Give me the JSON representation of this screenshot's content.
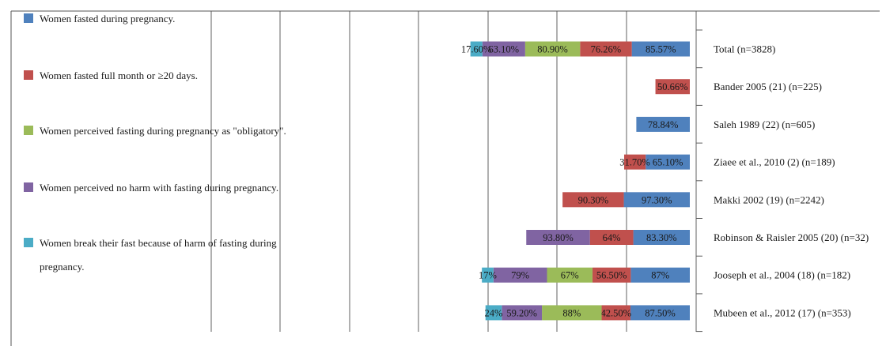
{
  "chart_data": {
    "type": "bar",
    "orientation": "horizontal",
    "stacked": true,
    "grid": true,
    "legend_position": "left",
    "categories": [
      "Total (n=3828)",
      "Bander 2005 (21) (n=225)",
      "Saleh 1989 (22) (n=605)",
      "Ziaee et al., 2010 (2) (n=189)",
      "Makki 2002 (19) (n=2242)",
      "Robinson & Raisler 2005 (20) (n=32)",
      "Jooseph et al., 2004 (18) (n=182)",
      "Mubeen et al., 2012 (17) (n=353)"
    ],
    "series": [
      {
        "name": "Women fasted during pregnancy.",
        "name_lines": [
          "Women fasted during pregnancy."
        ],
        "color": "#4f81bd",
        "values": [
          85.57,
          null,
          78.84,
          65.1,
          97.3,
          83.3,
          87,
          87.5
        ],
        "labels": [
          "85.57%",
          "",
          "78.84%",
          "65.10%",
          "97.30%",
          "83.30%",
          "87%",
          "87.50%"
        ]
      },
      {
        "name": "Women fasted full month or ≥20 days.",
        "name_lines": [
          "Women fasted full month or ≥20 days."
        ],
        "color": "#c0504d",
        "values": [
          76.26,
          50.66,
          null,
          31.7,
          90.3,
          64,
          56.5,
          42.5
        ],
        "labels": [
          "76.26%",
          "50.66%",
          "",
          "31.70%",
          "90.30%",
          "64%",
          "56.50%",
          "42.50%"
        ]
      },
      {
        "name": "Women perceived fasting during pregnancy as \"obligatory\".",
        "name_lines": [
          "Women perceived fasting during pregnancy as \"obligatory\"."
        ],
        "color": "#9bbb59",
        "values": [
          80.9,
          null,
          null,
          null,
          null,
          null,
          67,
          88
        ],
        "labels": [
          "80.90%",
          "",
          "",
          "",
          "",
          "",
          "67%",
          "88%"
        ]
      },
      {
        "name": "Women perceived no harm with fasting during pregnancy.",
        "name_lines": [
          "Women perceived no harm with fasting during pregnancy."
        ],
        "color": "#8064a2",
        "values": [
          63.1,
          null,
          null,
          null,
          null,
          93.8,
          79,
          59.2
        ],
        "labels": [
          "63.10%",
          "",
          "",
          "",
          "",
          "93.80%",
          "79%",
          "59.20%"
        ]
      },
      {
        "name": "Women break their fast because of harm of fasting during pregnancy.",
        "name_lines": [
          "Women break their fast because of harm of fasting during",
          "pregnancy."
        ],
        "color": "#4bacc6",
        "values": [
          17.6,
          null,
          null,
          null,
          null,
          null,
          17,
          24
        ],
        "labels": [
          "17.60%",
          "",
          "",
          "",
          "",
          "",
          "17%",
          "24%"
        ]
      }
    ]
  }
}
